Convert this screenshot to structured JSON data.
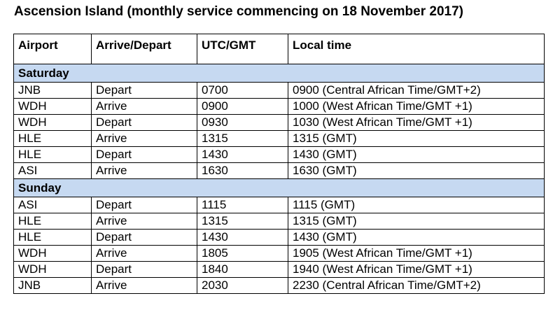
{
  "title": "Ascension Island (monthly service commencing on 18 November 2017)",
  "columns": [
    "Airport",
    "Arrive/Depart",
    "UTC/GMT",
    "Local time"
  ],
  "sections": [
    {
      "name": "Saturday",
      "rows": [
        [
          "JNB",
          "Depart",
          "0700",
          "0900 (Central African Time/GMT+2)"
        ],
        [
          "WDH",
          "Arrive",
          "0900",
          "1000 (West African Time/GMT +1)"
        ],
        [
          "WDH",
          "Depart",
          "0930",
          "1030 (West African Time/GMT +1)"
        ],
        [
          "HLE",
          "Arrive",
          "1315",
          "1315 (GMT)"
        ],
        [
          "HLE",
          "Depart",
          "1430",
          "1430 (GMT)"
        ],
        [
          "ASI",
          "Arrive",
          "1630",
          "1630 (GMT)"
        ]
      ]
    },
    {
      "name": "Sunday",
      "rows": [
        [
          "ASI",
          "Depart",
          "1115",
          "1115 (GMT)"
        ],
        [
          "HLE",
          "Arrive",
          "1315",
          "1315 (GMT)"
        ],
        [
          "HLE",
          "Depart",
          "1430",
          "1430 (GMT)"
        ],
        [
          "WDH",
          "Arrive",
          "1805",
          "1905 (West African Time/GMT +1)"
        ],
        [
          "WDH",
          "Depart",
          "1840",
          "1940 (West African Time/GMT +1)"
        ],
        [
          "JNB",
          "Arrive",
          "2030",
          "2230 (Central African Time/GMT+2)"
        ]
      ]
    }
  ],
  "colors": {
    "section_background": "#c6d9f1",
    "border": "#000000"
  }
}
